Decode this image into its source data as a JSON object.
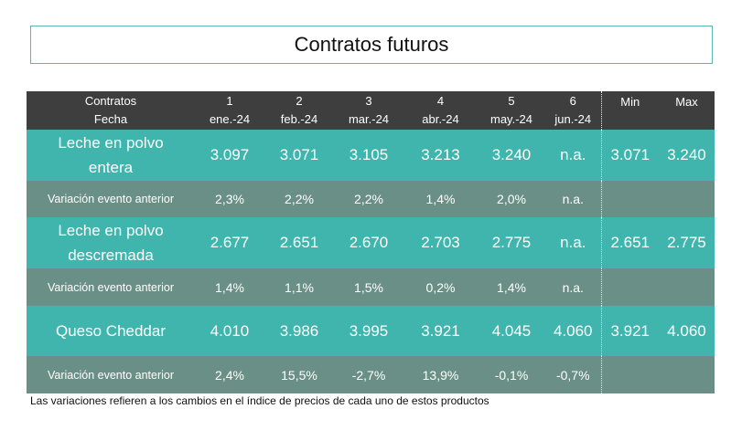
{
  "title": "Contratos futuros",
  "header": {
    "label_top": "Contratos",
    "label_bottom": "Fecha",
    "columns": [
      {
        "num": "1",
        "date": "ene.-24"
      },
      {
        "num": "2",
        "date": "feb.-24"
      },
      {
        "num": "3",
        "date": "mar.-24"
      },
      {
        "num": "4",
        "date": "abr.-24"
      },
      {
        "num": "5",
        "date": "may.-24"
      },
      {
        "num": "6",
        "date": "jun.-24"
      }
    ],
    "min": "Min",
    "max": "Max"
  },
  "rows": [
    {
      "label_lines": [
        "Leche en polvo",
        "entera"
      ],
      "values": [
        "3.097",
        "3.071",
        "3.105",
        "3.213",
        "3.240",
        "n.a."
      ],
      "min": "3.071",
      "max": "3.240",
      "variation": {
        "label": "Variación evento anterior",
        "values": [
          "2,3%",
          "2,2%",
          "2,2%",
          "1,4%",
          "2,0%",
          "n.a."
        ]
      }
    },
    {
      "label_lines": [
        "Leche en polvo",
        "descremada"
      ],
      "values": [
        "2.677",
        "2.651",
        "2.670",
        "2.703",
        "2.775",
        "n.a."
      ],
      "min": "2.651",
      "max": "2.775",
      "variation": {
        "label": "Variación evento anterior",
        "values": [
          "1,4%",
          "1,1%",
          "1,5%",
          "0,2%",
          "1,4%",
          "n.a."
        ]
      }
    },
    {
      "label_lines": [
        "Queso Cheddar"
      ],
      "values": [
        "4.010",
        "3.986",
        "3.995",
        "3.921",
        "4.045",
        "4.060"
      ],
      "min": "3.921",
      "max": "4.060",
      "variation": {
        "label": "Variación evento anterior",
        "values": [
          "2,4%",
          "15,5%",
          "-2,7%",
          "13,9%",
          "-0,1%",
          "-0,7%"
        ]
      }
    }
  ],
  "footnote": "Las variaciones refieren a los cambios en el índice de precios de cada uno de estos productos",
  "colors": {
    "header_bg": "#3f3e3e",
    "main_bg": "#3fb5ad",
    "variation_bg": "#6a8f86",
    "title_border": "#5fb3b3"
  }
}
